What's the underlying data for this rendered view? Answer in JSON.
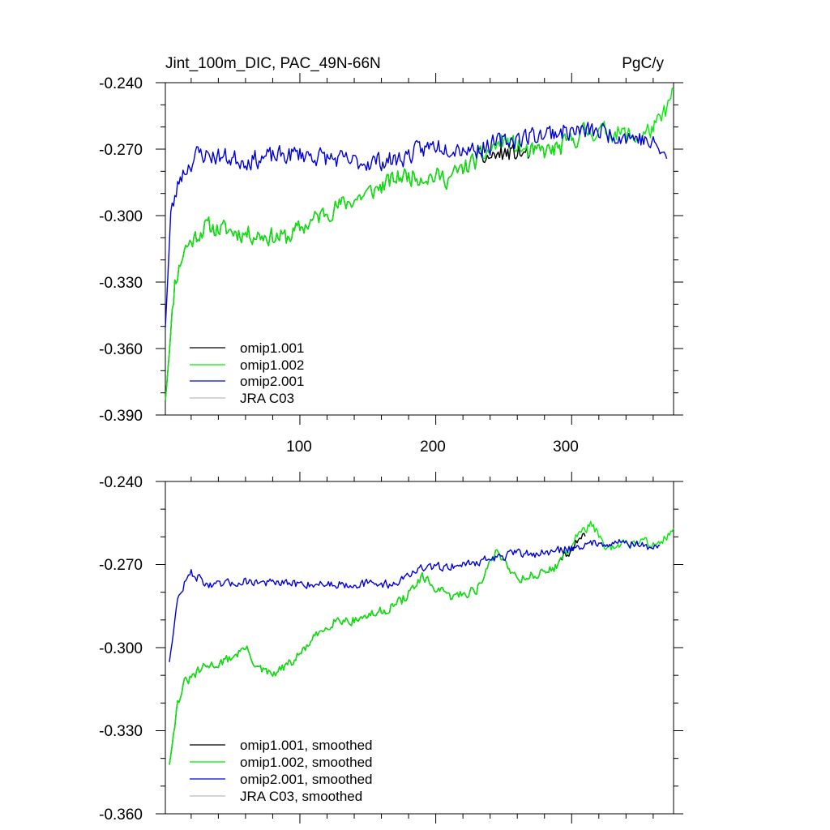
{
  "chart_data": [
    {
      "type": "line",
      "title_left": "Jint_100m_DIC, PAC_49N-66N",
      "title_right": "PgC/y",
      "xlim": [
        1,
        375
      ],
      "ylim": [
        -0.39,
        -0.24
      ],
      "xticks": [
        100,
        200,
        300
      ],
      "xtick_labels": [
        "100",
        "200",
        "300"
      ],
      "yticks": [
        -0.39,
        -0.36,
        -0.33,
        -0.3,
        -0.27,
        -0.24
      ],
      "ytick_labels": [
        "-0.390",
        "-0.360",
        "-0.330",
        "-0.300",
        "-0.270",
        "-0.240"
      ],
      "legend_position": "bottom-left",
      "series": [
        {
          "name": "omip1.001",
          "color": "#000000",
          "keys": [
            [
              1,
              -0.383
            ],
            [
              8,
              -0.33
            ],
            [
              15,
              -0.315
            ],
            [
              30,
              -0.305
            ],
            [
              60,
              -0.308
            ],
            [
              90,
              -0.31
            ],
            [
              120,
              -0.298
            ],
            [
              150,
              -0.29
            ],
            [
              175,
              -0.282
            ],
            [
              190,
              -0.282
            ],
            [
              210,
              -0.283
            ],
            [
              230,
              -0.275
            ],
            [
              250,
              -0.272
            ],
            [
              270,
              -0.272
            ],
            [
              290,
              -0.27
            ],
            [
              310,
              -0.262
            ]
          ],
          "end": 310,
          "amp": 0.006,
          "seed": 11
        },
        {
          "name": "omip1.002",
          "color": "#00ee00",
          "keys": [
            [
              1,
              -0.383
            ],
            [
              8,
              -0.33
            ],
            [
              15,
              -0.315
            ],
            [
              30,
              -0.305
            ],
            [
              60,
              -0.308
            ],
            [
              90,
              -0.31
            ],
            [
              120,
              -0.298
            ],
            [
              150,
              -0.29
            ],
            [
              175,
              -0.282
            ],
            [
              190,
              -0.282
            ],
            [
              210,
              -0.283
            ],
            [
              230,
              -0.275
            ],
            [
              250,
              -0.266
            ],
            [
              270,
              -0.272
            ],
            [
              290,
              -0.27
            ],
            [
              310,
              -0.262
            ],
            [
              330,
              -0.262
            ],
            [
              350,
              -0.265
            ],
            [
              365,
              -0.258
            ],
            [
              375,
              -0.245
            ]
          ],
          "end": 375,
          "amp": 0.006,
          "seed": 11
        },
        {
          "name": "omip2.001",
          "color": "#0000dd",
          "keys": [
            [
              1,
              -0.35
            ],
            [
              5,
              -0.3
            ],
            [
              12,
              -0.282
            ],
            [
              25,
              -0.272
            ],
            [
              60,
              -0.275
            ],
            [
              100,
              -0.272
            ],
            [
              140,
              -0.276
            ],
            [
              170,
              -0.275
            ],
            [
              200,
              -0.268
            ],
            [
              230,
              -0.27
            ],
            [
              260,
              -0.265
            ],
            [
              290,
              -0.262
            ],
            [
              320,
              -0.262
            ],
            [
              350,
              -0.265
            ],
            [
              365,
              -0.27
            ],
            [
              370,
              -0.275
            ]
          ],
          "end": 370,
          "amp": 0.006,
          "seed": 23
        },
        {
          "name": "JRA C03",
          "color": "#bbbbbb",
          "keys": [],
          "end": 0,
          "amp": 0,
          "seed": 0
        }
      ]
    },
    {
      "type": "line",
      "xlim": [
        1,
        375
      ],
      "ylim": [
        -0.36,
        -0.24
      ],
      "xticks": [
        100,
        200,
        300
      ],
      "yticks": [
        -0.36,
        -0.33,
        -0.3,
        -0.27,
        -0.24
      ],
      "ytick_labels": [
        "-0.360",
        "-0.330",
        "-0.300",
        "-0.270",
        "-0.240"
      ],
      "legend_position": "bottom-left",
      "series": [
        {
          "name": "omip1.001, smoothed",
          "color": "#000000",
          "keys": [
            [
              4,
              -0.342
            ],
            [
              10,
              -0.32
            ],
            [
              15,
              -0.313
            ],
            [
              30,
              -0.307
            ],
            [
              45,
              -0.305
            ],
            [
              60,
              -0.3
            ],
            [
              70,
              -0.308
            ],
            [
              80,
              -0.31
            ],
            [
              95,
              -0.305
            ],
            [
              110,
              -0.297
            ],
            [
              125,
              -0.29
            ],
            [
              140,
              -0.29
            ],
            [
              160,
              -0.287
            ],
            [
              175,
              -0.283
            ],
            [
              190,
              -0.275
            ],
            [
              210,
              -0.282
            ],
            [
              230,
              -0.279
            ],
            [
              245,
              -0.265
            ],
            [
              260,
              -0.275
            ],
            [
              280,
              -0.273
            ],
            [
              290,
              -0.27
            ],
            [
              300,
              -0.264
            ],
            [
              310,
              -0.259
            ]
          ],
          "end": 310,
          "amp": 0.0025,
          "seed": 31
        },
        {
          "name": "omip1.002, smoothed",
          "color": "#00ee00",
          "keys": [
            [
              4,
              -0.342
            ],
            [
              10,
              -0.32
            ],
            [
              15,
              -0.313
            ],
            [
              30,
              -0.307
            ],
            [
              45,
              -0.305
            ],
            [
              60,
              -0.3
            ],
            [
              70,
              -0.308
            ],
            [
              80,
              -0.31
            ],
            [
              95,
              -0.305
            ],
            [
              110,
              -0.297
            ],
            [
              125,
              -0.29
            ],
            [
              140,
              -0.29
            ],
            [
              160,
              -0.287
            ],
            [
              175,
              -0.283
            ],
            [
              190,
              -0.275
            ],
            [
              210,
              -0.282
            ],
            [
              230,
              -0.279
            ],
            [
              245,
              -0.265
            ],
            [
              260,
              -0.275
            ],
            [
              280,
              -0.273
            ],
            [
              290,
              -0.27
            ],
            [
              305,
              -0.259
            ],
            [
              315,
              -0.255
            ],
            [
              325,
              -0.265
            ],
            [
              345,
              -0.262
            ],
            [
              365,
              -0.262
            ],
            [
              375,
              -0.258
            ]
          ],
          "end": 375,
          "amp": 0.0025,
          "seed": 31
        },
        {
          "name": "omip2.001, smoothed",
          "color": "#0000dd",
          "keys": [
            [
              4,
              -0.305
            ],
            [
              10,
              -0.283
            ],
            [
              15,
              -0.277
            ],
            [
              20,
              -0.273
            ],
            [
              35,
              -0.278
            ],
            [
              60,
              -0.276
            ],
            [
              90,
              -0.277
            ],
            [
              120,
              -0.277
            ],
            [
              150,
              -0.277
            ],
            [
              170,
              -0.277
            ],
            [
              185,
              -0.272
            ],
            [
              200,
              -0.271
            ],
            [
              220,
              -0.27
            ],
            [
              240,
              -0.268
            ],
            [
              260,
              -0.266
            ],
            [
              280,
              -0.266
            ],
            [
              300,
              -0.264
            ],
            [
              320,
              -0.262
            ],
            [
              340,
              -0.262
            ],
            [
              360,
              -0.264
            ],
            [
              365,
              -0.264
            ]
          ],
          "end": 365,
          "amp": 0.0022,
          "seed": 47
        },
        {
          "name": "JRA C03, smoothed",
          "color": "#bbbbbb",
          "keys": [],
          "end": 0,
          "amp": 0,
          "seed": 0
        }
      ]
    }
  ]
}
